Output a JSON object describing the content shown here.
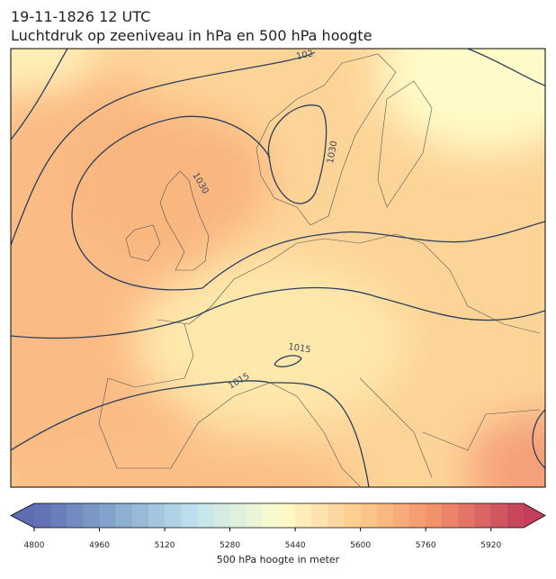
{
  "header": {
    "title": "19-11-1826 12 UTC",
    "subtitle": "Luchtdruk op zeeniveau in hPa en 500 hPa hoogte"
  },
  "map": {
    "contour_labels": [
      "102",
      "1030",
      "1030",
      "1015",
      "1015"
    ]
  },
  "colorbar": {
    "label": "500 hPa hoogte in meter",
    "range": [
      4800,
      6000
    ],
    "bands": 30,
    "ticks": [
      4800,
      4960,
      5120,
      5280,
      5440,
      5600,
      5760,
      5920
    ],
    "colors": [
      "#5e6cb2",
      "#86a9cf",
      "#c2e3ee",
      "#fefccd",
      "#fdc98c",
      "#f08c6a",
      "#c23f5c"
    ]
  }
}
